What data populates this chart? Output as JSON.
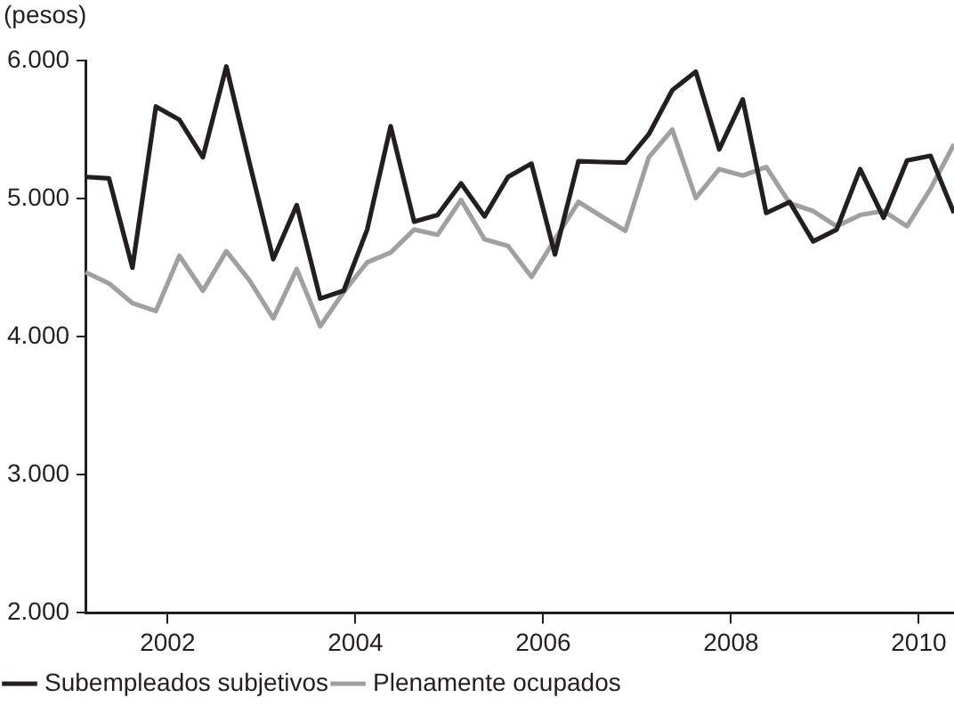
{
  "chart_data": {
    "type": "line",
    "ylabel": "(pesos)",
    "x": [
      2001.125,
      2001.375,
      2001.625,
      2001.875,
      2002.125,
      2002.375,
      2002.625,
      2002.875,
      2003.125,
      2003.375,
      2003.625,
      2003.875,
      2004.125,
      2004.375,
      2004.625,
      2004.875,
      2005.125,
      2005.375,
      2005.625,
      2005.875,
      2006.125,
      2006.375,
      2006.625,
      2006.875,
      2007.125,
      2007.375,
      2007.625,
      2007.875,
      2008.125,
      2008.375,
      2008.625,
      2008.875,
      2009.125,
      2009.375,
      2009.625,
      2009.875,
      2010.125,
      2010.375
    ],
    "series": [
      {
        "name": "Subempleados subjetivos",
        "color": "#231f20",
        "values": [
          5157,
          5147,
          4500,
          5667,
          5571,
          5300,
          5957,
          5250,
          4562,
          4953,
          4276,
          4333,
          4776,
          5524,
          4833,
          4881,
          5110,
          4871,
          5157,
          5253,
          4596,
          5271,
          5265,
          5261,
          5467,
          5786,
          5919,
          5357,
          5719,
          4896,
          4976,
          4690,
          4776,
          5214,
          4862,
          5276,
          5310,
          4896
        ]
      },
      {
        "name": "Plenamente ocupados",
        "color": "#a0a0a0",
        "values": [
          4467,
          4386,
          4243,
          4186,
          4586,
          4333,
          4619,
          4405,
          4133,
          4490,
          4076,
          4324,
          4538,
          4610,
          4776,
          4738,
          4990,
          4705,
          4657,
          4433,
          4705,
          4976,
          4870,
          4767,
          5300,
          5500,
          5004,
          5214,
          5167,
          5229,
          4967,
          4910,
          4800,
          4881,
          4910,
          4800,
          5071,
          5395
        ]
      }
    ],
    "xlim": [
      2001.125,
      2010.375
    ],
    "xticks": [
      2002,
      2004,
      2006,
      2008,
      2010
    ],
    "ylim": [
      2000,
      6000
    ],
    "yticks": [
      {
        "value": 2000,
        "label": "2.000"
      },
      {
        "value": 3000,
        "label": "3.000"
      },
      {
        "value": 4000,
        "label": "4.000"
      },
      {
        "value": 5000,
        "label": "5.000"
      },
      {
        "value": 6000,
        "label": "6.000"
      }
    ],
    "grid": false,
    "legend": "bottom",
    "marker": "none",
    "line_style": "solid"
  }
}
